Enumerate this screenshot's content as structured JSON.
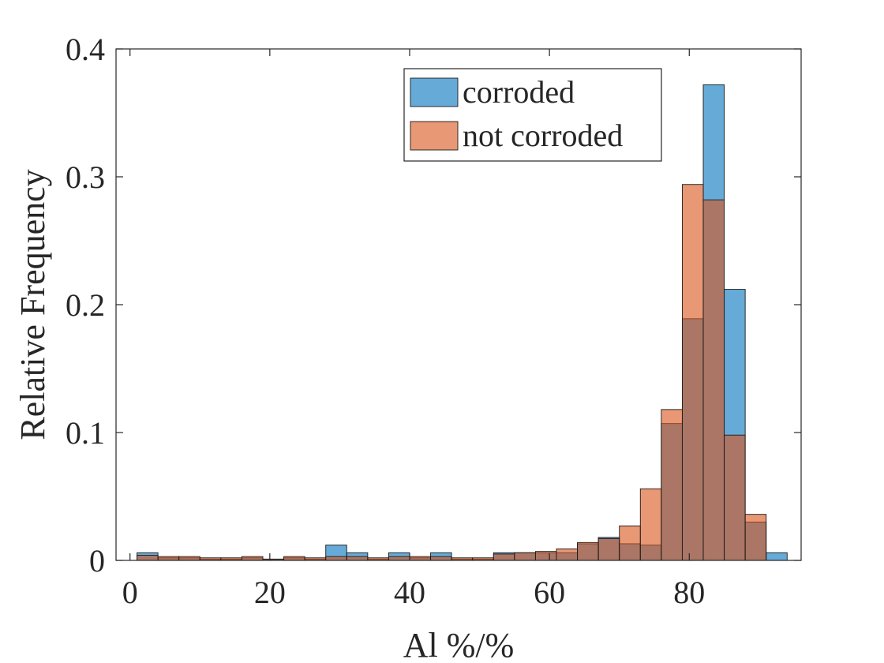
{
  "chart_data": {
    "type": "bar",
    "subtype": "overlaid-histogram",
    "title": "",
    "xlabel": "Al %/%",
    "ylabel": "Relative Frequency",
    "xlim": [
      -2,
      96
    ],
    "ylim": [
      0,
      0.4
    ],
    "xticks": [
      0,
      20,
      40,
      60,
      80
    ],
    "yticks": [
      0,
      0.1,
      0.2,
      0.3,
      0.4
    ],
    "xtick_labels": [
      "0",
      "20",
      "40",
      "60",
      "80"
    ],
    "ytick_labels": [
      "0",
      "0.1",
      "0.2",
      "0.3",
      "0.4"
    ],
    "grid": false,
    "legend_position": "top-right",
    "bin_edges": [
      1,
      4,
      7,
      10,
      13,
      16,
      19,
      22,
      25,
      28,
      31,
      34,
      37,
      40,
      43,
      46,
      49,
      52,
      55,
      58,
      61,
      64,
      67,
      70,
      73,
      76,
      79,
      82,
      85,
      88,
      91,
      94
    ],
    "series": [
      {
        "name": "corroded",
        "color": "#0072BD",
        "alpha": 0.6,
        "values": [
          0.006,
          0.002,
          0.002,
          0.001,
          0.001,
          0.002,
          0.001,
          0.002,
          0.001,
          0.012,
          0.006,
          0.001,
          0.006,
          0.002,
          0.006,
          0.001,
          0.001,
          0.006,
          0.006,
          0.006,
          0.006,
          0.013,
          0.018,
          0.013,
          0.012,
          0.107,
          0.189,
          0.372,
          0.212,
          0.03,
          0.006
        ]
      },
      {
        "name": "not corroded",
        "color": "#D95319",
        "alpha": 0.6,
        "values": [
          0.004,
          0.003,
          0.003,
          0.002,
          0.002,
          0.003,
          0.001,
          0.003,
          0.002,
          0.003,
          0.003,
          0.002,
          0.003,
          0.003,
          0.003,
          0.002,
          0.002,
          0.005,
          0.006,
          0.007,
          0.009,
          0.014,
          0.017,
          0.027,
          0.056,
          0.118,
          0.294,
          0.282,
          0.098,
          0.036,
          0.0
        ]
      }
    ]
  }
}
